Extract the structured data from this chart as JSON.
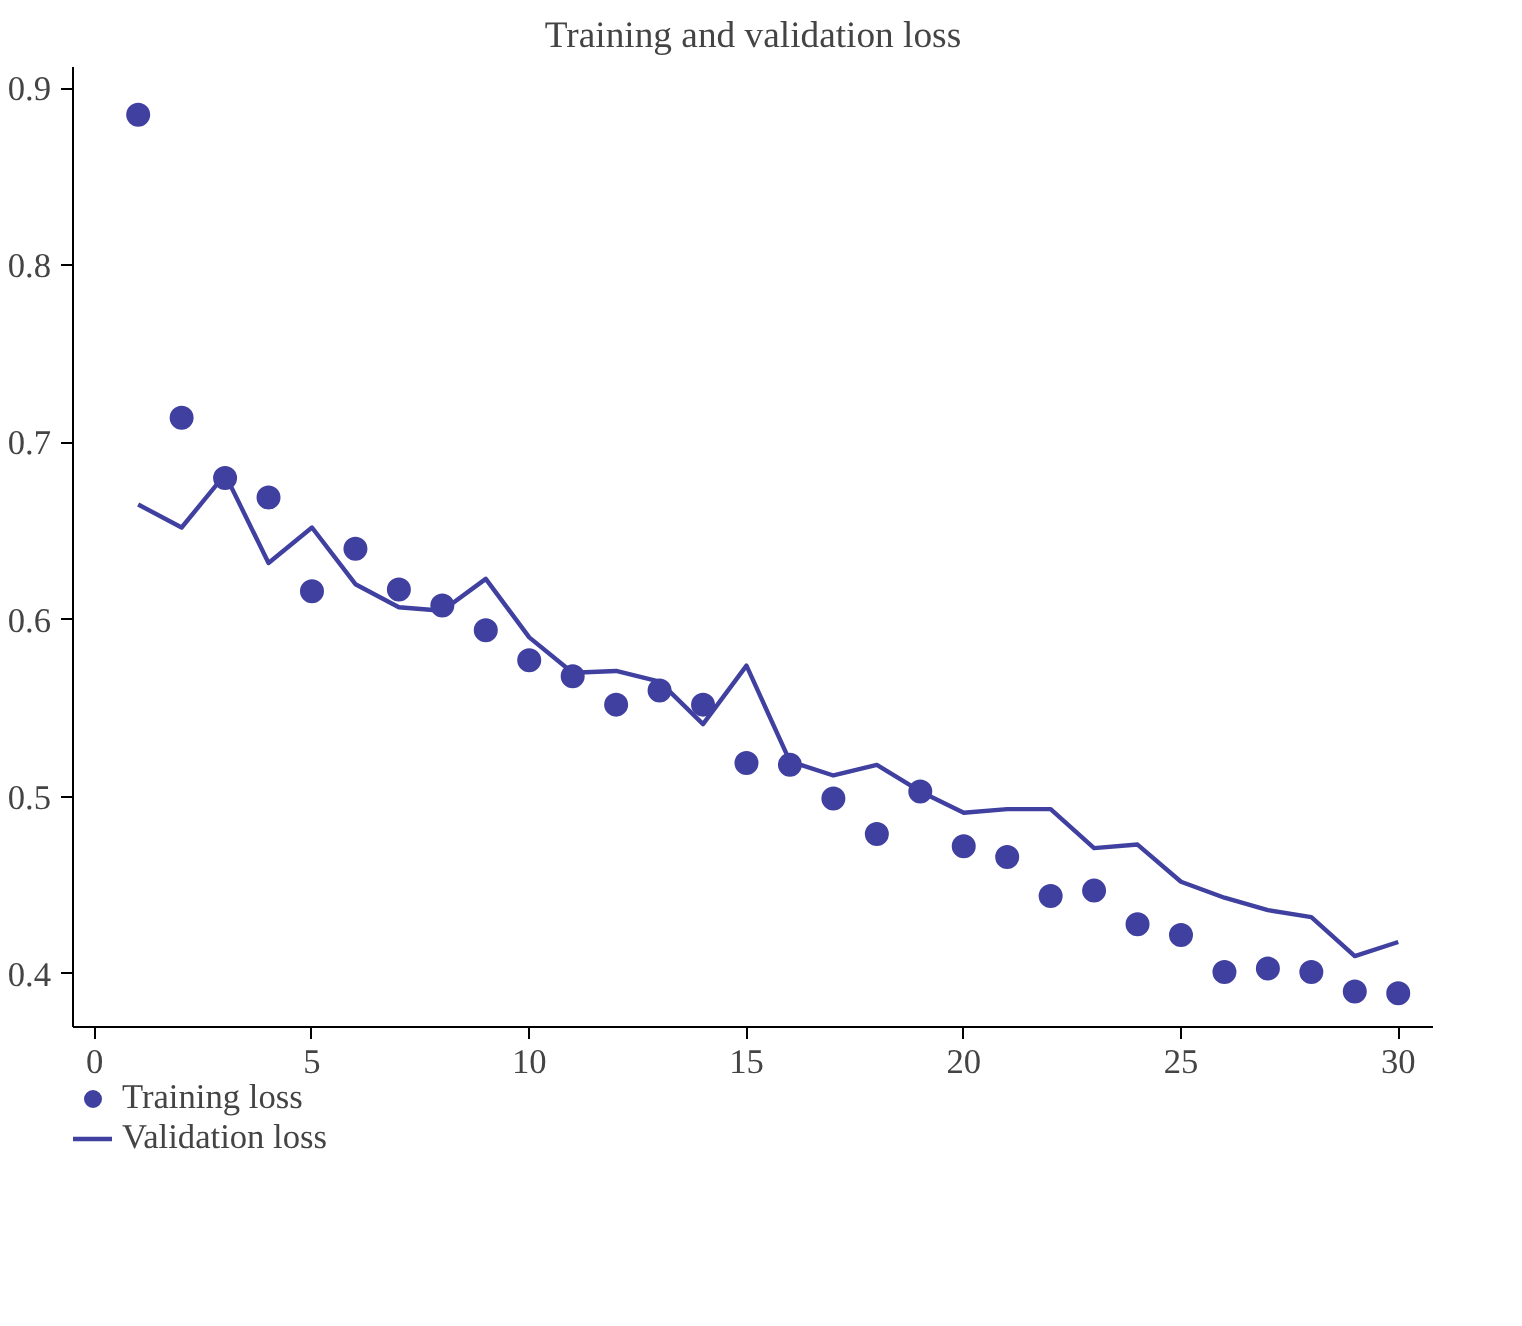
{
  "chart_data": {
    "type": "line",
    "title": "Training and validation loss",
    "x": [
      1,
      2,
      3,
      4,
      5,
      6,
      7,
      8,
      9,
      10,
      11,
      12,
      13,
      14,
      15,
      16,
      17,
      18,
      19,
      20,
      21,
      22,
      23,
      24,
      25,
      26,
      27,
      28,
      29,
      30
    ],
    "series": [
      {
        "name": "Training loss",
        "type": "scatter",
        "marker": "circle",
        "color": "#4040a0",
        "values": [
          0.885,
          0.714,
          0.68,
          0.669,
          0.616,
          0.64,
          0.617,
          0.608,
          0.594,
          0.577,
          0.568,
          0.552,
          0.56,
          0.552,
          0.519,
          0.518,
          0.499,
          0.479,
          0.503,
          0.472,
          0.466,
          0.444,
          0.447,
          0.428,
          0.422,
          0.401,
          0.403,
          0.401,
          0.39,
          0.389
        ]
      },
      {
        "name": "Validation loss",
        "type": "line",
        "marker": "none",
        "line_style": "solid",
        "color": "#4040a0",
        "values": [
          0.665,
          0.652,
          0.682,
          0.632,
          0.652,
          0.62,
          0.607,
          0.605,
          0.623,
          0.59,
          0.57,
          0.571,
          0.565,
          0.541,
          0.574,
          0.52,
          0.512,
          0.518,
          0.503,
          0.491,
          0.493,
          0.493,
          0.471,
          0.473,
          0.452,
          0.443,
          0.436,
          0.432,
          0.41,
          0.418
        ]
      }
    ],
    "xlim": [
      -0.5,
      30.8
    ],
    "ylim": [
      0.37,
      0.912
    ],
    "xticks": [
      0,
      5,
      10,
      15,
      20,
      25,
      30
    ],
    "yticks": [
      0.4,
      0.5,
      0.6,
      0.7,
      0.8,
      0.9
    ],
    "grid": false,
    "legend": "bottom left"
  }
}
